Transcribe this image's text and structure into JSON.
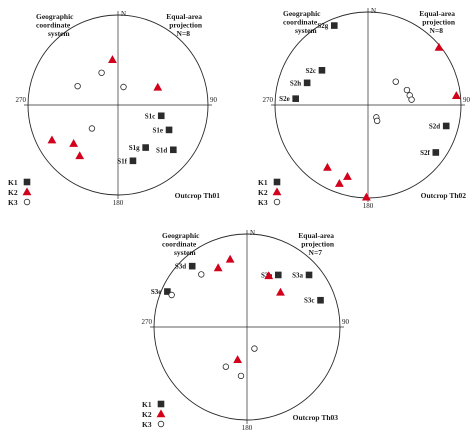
{
  "colors": {
    "k1": "#2b2b2b",
    "k2": "#d3001b",
    "k3": "#ffffff",
    "stroke": "#2a2a2a"
  },
  "legend": {
    "k1": "K1",
    "k2": "K2",
    "k3": "K3"
  },
  "nets": [
    {
      "id": "th01",
      "header_left": [
        "Geographic",
        "coordinate",
        "system"
      ],
      "header_right": [
        "Equal-area",
        "projection",
        "N=8"
      ],
      "north": "N",
      "south": "180",
      "east": "90",
      "west": "270",
      "outcrop": "Outcrop Th01",
      "points": [
        {
          "set": "K1",
          "label": "S1c",
          "azimuth": 104,
          "plunge": 49
        },
        {
          "set": "K1",
          "label": "S1e",
          "azimuth": 116,
          "plunge": 37
        },
        {
          "set": "K1",
          "label": "S1d",
          "azimuth": 129,
          "plunge": 22
        },
        {
          "set": "K1",
          "label": "S1g",
          "azimuth": 147,
          "plunge": 43
        },
        {
          "set": "K1",
          "label": "S1f",
          "azimuth": 165,
          "plunge": 36
        },
        {
          "set": "K2",
          "label": "",
          "azimuth": 353,
          "plunge": 48
        },
        {
          "set": "K2",
          "label": "",
          "azimuth": 66,
          "plunge": 50
        },
        {
          "set": "K2",
          "label": "",
          "azimuth": 242,
          "plunge": 18
        },
        {
          "set": "K2",
          "label": "",
          "azimuth": 229,
          "plunge": 35
        },
        {
          "set": "K2",
          "label": "",
          "azimuth": 217,
          "plunge": 30
        },
        {
          "set": "K3",
          "label": "",
          "azimuth": 333,
          "plunge": 57
        },
        {
          "set": "K3",
          "label": "",
          "azimuth": 17,
          "plunge": 73
        },
        {
          "set": "K3",
          "label": "",
          "azimuth": 295,
          "plunge": 49
        },
        {
          "set": "K3",
          "label": "",
          "azimuth": 228,
          "plunge": 58
        }
      ]
    },
    {
      "id": "th02",
      "header_left": [
        "Geographic",
        "coordinate",
        "system"
      ],
      "header_right": [
        "Equal-area",
        "projection",
        "N=8"
      ],
      "north": "N",
      "south": "180",
      "east": "90",
      "west": "270",
      "outcrop": "Outcrop Th02",
      "points": [
        {
          "set": "K1",
          "label": "S2g",
          "azimuth": 337,
          "plunge": 8
        },
        {
          "set": "K1",
          "label": "S2c",
          "azimuth": 307,
          "plunge": 38
        },
        {
          "set": "K1",
          "label": "S2h",
          "azimuth": 290,
          "plunge": 31
        },
        {
          "set": "K1",
          "label": "S2e",
          "azimuth": 275,
          "plunge": 23
        },
        {
          "set": "K1",
          "label": "S2d",
          "azimuth": 105,
          "plunge": 14
        },
        {
          "set": "K1",
          "label": "S2f",
          "azimuth": 125,
          "plunge": 12
        },
        {
          "set": "K2",
          "label": "",
          "azimuth": 51,
          "plunge": 2
        },
        {
          "set": "K2",
          "label": "",
          "azimuth": 84,
          "plunge": 5
        },
        {
          "set": "K2",
          "label": "",
          "azimuth": 213,
          "plunge": 21
        },
        {
          "set": "K2",
          "label": "",
          "azimuth": 196,
          "plunge": 21
        },
        {
          "set": "K2",
          "label": "",
          "azimuth": 200,
          "plunge": 11
        },
        {
          "set": "K2",
          "label": "",
          "azimuth": 181,
          "plunge": 1
        },
        {
          "set": "K3",
          "label": "",
          "azimuth": 50,
          "plunge": 58
        },
        {
          "set": "K3",
          "label": "",
          "azimuth": 69,
          "plunge": 53
        },
        {
          "set": "K3",
          "label": "",
          "azimuth": 77,
          "plunge": 52
        },
        {
          "set": "K3",
          "label": "",
          "azimuth": 83,
          "plunge": 51
        },
        {
          "set": "K3",
          "label": "",
          "azimuth": 146,
          "plunge": 77
        },
        {
          "set": "K3",
          "label": "",
          "azimuth": 150,
          "plunge": 74
        }
      ]
    },
    {
      "id": "th03",
      "header_left": [
        "Geographic",
        "coordinate",
        "system"
      ],
      "header_right": [
        "Equal-area",
        "projection",
        "N=7"
      ],
      "north": "N",
      "south": "180",
      "east": "90",
      "west": "270",
      "outcrop": "Outcrop Th03",
      "points": [
        {
          "set": "K1",
          "label": "S3d",
          "azimuth": 318,
          "plunge": 13
        },
        {
          "set": "K1",
          "label": "S3e",
          "azimuth": 294,
          "plunge": 7
        },
        {
          "set": "K1",
          "label": "S3b",
          "azimuth": 31,
          "plunge": 35
        },
        {
          "set": "K1",
          "label": "S3a",
          "azimuth": 50,
          "plunge": 14
        },
        {
          "set": "K1",
          "label": "S3c",
          "azimuth": 70,
          "plunge": 17
        },
        {
          "set": "K2",
          "label": "",
          "azimuth": 334,
          "plunge": 30
        },
        {
          "set": "K2",
          "label": "",
          "azimuth": 346,
          "plunge": 26
        },
        {
          "set": "K2",
          "label": "",
          "azimuth": 23,
          "plunge": 40
        },
        {
          "set": "K2",
          "label": "",
          "azimuth": 44,
          "plunge": 47
        },
        {
          "set": "K2",
          "label": "",
          "azimuth": 196,
          "plunge": 60
        },
        {
          "set": "K3",
          "label": "",
          "azimuth": 319,
          "plunge": 26
        },
        {
          "set": "K3",
          "label": "",
          "azimuth": 293,
          "plunge": 13
        },
        {
          "set": "K3",
          "label": "",
          "azimuth": 161,
          "plunge": 70
        },
        {
          "set": "K3",
          "label": "",
          "azimuth": 208,
          "plunge": 50
        },
        {
          "set": "K3",
          "label": "",
          "azimuth": 187,
          "plunge": 46
        }
      ]
    }
  ]
}
